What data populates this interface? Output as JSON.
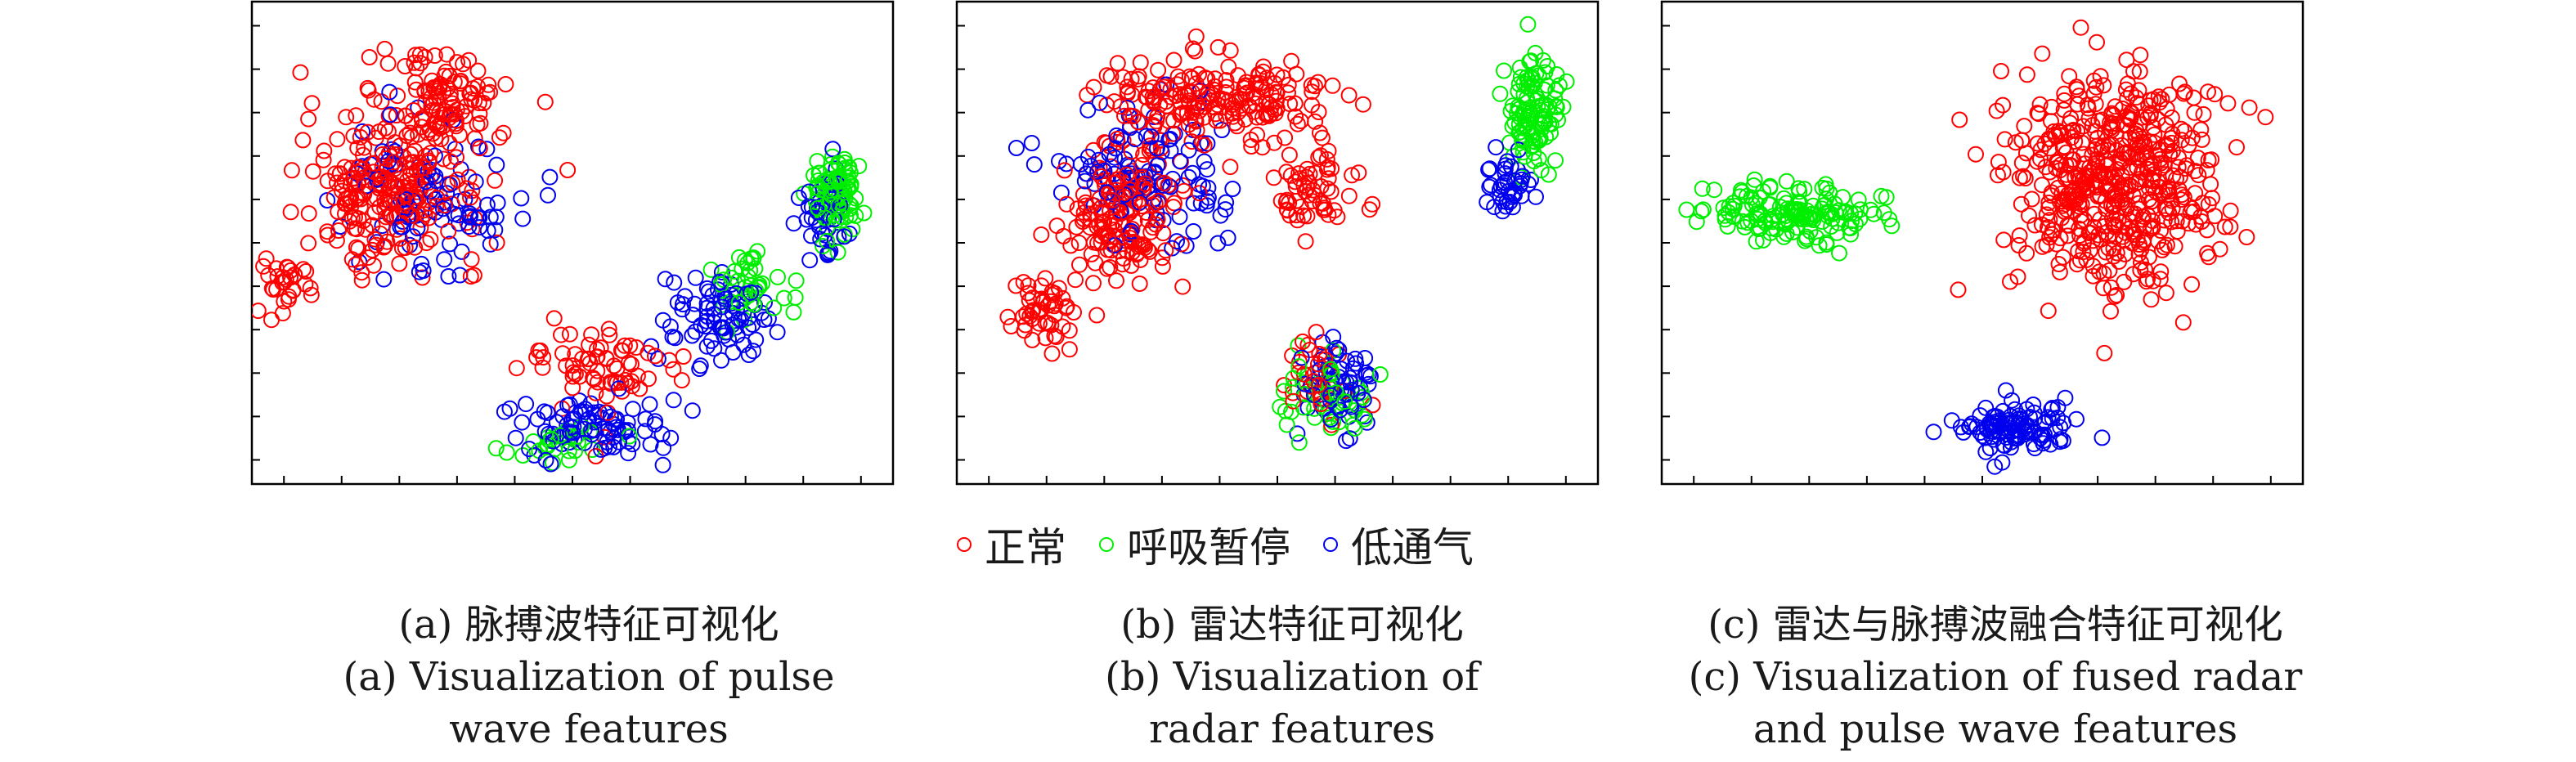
{
  "legend": [
    {
      "label": "正常",
      "color": "#ff0000"
    },
    {
      "label": "呼吸暂停",
      "color": "#00ee00"
    },
    {
      "label": "低通气",
      "color": "#0000ee"
    }
  ],
  "captions": [
    {
      "cn": "(a) 脉搏波特征可视化",
      "en1": "(a) Visualization of pulse",
      "en2": "wave features"
    },
    {
      "cn": "(b) 雷达特征可视化",
      "en1": "(b) Visualization of",
      "en2": "radar features"
    },
    {
      "cn": "(c) 雷达与脉搏波融合特征可视化",
      "en1": "(c) Visualization of fused radar",
      "en2": "and pulse wave features"
    }
  ],
  "chart_data": [
    {
      "type": "scatter",
      "title": "(a) 脉搏波特征可视化",
      "xlim": [
        0,
        100
      ],
      "ylim": [
        0,
        100
      ],
      "tick_labels_shown": false,
      "series": [
        {
          "name": "正常",
          "color": "#ff0000",
          "clusters": [
            {
              "cx": 22,
              "cy": 62,
              "sx": 14,
              "sy": 16,
              "n": 260
            },
            {
              "cx": 6,
              "cy": 42,
              "sx": 4,
              "sy": 5,
              "n": 30
            },
            {
              "cx": 30,
              "cy": 80,
              "sx": 10,
              "sy": 9,
              "n": 90
            },
            {
              "cx": 55,
              "cy": 24,
              "sx": 12,
              "sy": 9,
              "n": 70
            }
          ]
        },
        {
          "name": "呼吸暂停",
          "color": "#00ee00",
          "clusters": [
            {
              "cx": 91,
              "cy": 60,
              "sx": 4,
              "sy": 10,
              "n": 90
            },
            {
              "cx": 78,
              "cy": 42,
              "sx": 6,
              "sy": 8,
              "n": 40
            },
            {
              "cx": 48,
              "cy": 8,
              "sx": 8,
              "sy": 4,
              "n": 25
            }
          ]
        },
        {
          "name": "低通气",
          "color": "#0000ee",
          "clusters": [
            {
              "cx": 28,
              "cy": 60,
              "sx": 14,
              "sy": 15,
              "n": 90
            },
            {
              "cx": 72,
              "cy": 34,
              "sx": 8,
              "sy": 10,
              "n": 80
            },
            {
              "cx": 54,
              "cy": 12,
              "sx": 13,
              "sy": 6,
              "n": 90
            },
            {
              "cx": 89,
              "cy": 55,
              "sx": 4,
              "sy": 10,
              "n": 40
            }
          ]
        }
      ]
    },
    {
      "type": "scatter",
      "title": "(b) 雷达特征可视化",
      "xlim": [
        0,
        100
      ],
      "ylim": [
        0,
        100
      ],
      "tick_labels_shown": false,
      "series": [
        {
          "name": "正常",
          "color": "#ff0000",
          "clusters": [
            {
              "cx": 40,
              "cy": 80,
              "sx": 16,
              "sy": 9,
              "n": 200
            },
            {
              "cx": 26,
              "cy": 56,
              "sx": 10,
              "sy": 14,
              "n": 170
            },
            {
              "cx": 14,
              "cy": 36,
              "sx": 5,
              "sy": 8,
              "n": 50
            },
            {
              "cx": 56,
              "cy": 62,
              "sx": 6,
              "sy": 8,
              "n": 60
            },
            {
              "cx": 57,
              "cy": 22,
              "sx": 6,
              "sy": 9,
              "n": 35
            }
          ]
        },
        {
          "name": "呼吸暂停",
          "color": "#00ee00",
          "clusters": [
            {
              "cx": 90,
              "cy": 77,
              "sx": 4,
              "sy": 11,
              "n": 110
            },
            {
              "cx": 58,
              "cy": 18,
              "sx": 7,
              "sy": 9,
              "n": 50
            }
          ]
        },
        {
          "name": "低通气",
          "color": "#0000ee",
          "clusters": [
            {
              "cx": 30,
              "cy": 64,
              "sx": 13,
              "sy": 14,
              "n": 110
            },
            {
              "cx": 86,
              "cy": 62,
              "sx": 4,
              "sy": 7,
              "n": 40
            },
            {
              "cx": 60,
              "cy": 20,
              "sx": 6,
              "sy": 10,
              "n": 60
            }
          ]
        }
      ]
    },
    {
      "type": "scatter",
      "title": "(c) 雷达与脉搏波融合特征可视化",
      "xlim": [
        0,
        100
      ],
      "ylim": [
        0,
        100
      ],
      "tick_labels_shown": false,
      "series": [
        {
          "name": "正常",
          "color": "#ff0000",
          "clusters": [
            {
              "cx": 70,
              "cy": 62,
              "sx": 16,
              "sy": 23,
              "n": 520
            }
          ]
        },
        {
          "name": "呼吸暂停",
          "color": "#00ee00",
          "clusters": [
            {
              "cx": 21,
              "cy": 56,
              "sx": 12,
              "sy": 6,
              "n": 150
            }
          ]
        },
        {
          "name": "低通气",
          "color": "#0000ee",
          "clusters": [
            {
              "cx": 55,
              "cy": 12,
              "sx": 8,
              "sy": 5,
              "n": 110
            }
          ]
        }
      ]
    }
  ]
}
